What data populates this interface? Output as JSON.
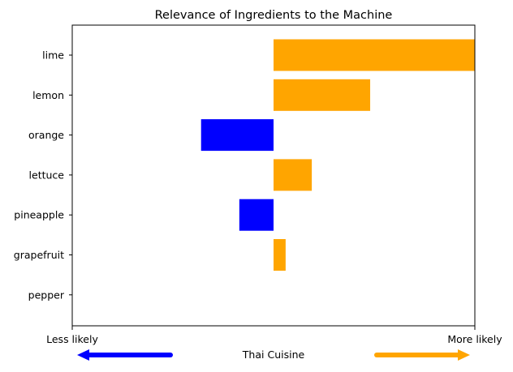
{
  "chart_data": {
    "type": "bar",
    "orientation": "horizontal",
    "title": "Relevance of Ingredients to the Machine",
    "categories": [
      "lime",
      "lemon",
      "orange",
      "lettuce",
      "pineapple",
      "grapefruit",
      "pepper"
    ],
    "values": [
      0.5,
      0.24,
      -0.18,
      0.095,
      -0.085,
      0.03,
      0.0
    ],
    "xlim": [
      -0.5,
      0.5
    ],
    "grid": false,
    "colors": {
      "positive": "#FFA500",
      "negative": "#0000FF",
      "axis": "#000000"
    },
    "x_axis_left_label": "Less likely",
    "x_axis_right_label": "More likely",
    "center_label": "Thai Cuisine"
  }
}
